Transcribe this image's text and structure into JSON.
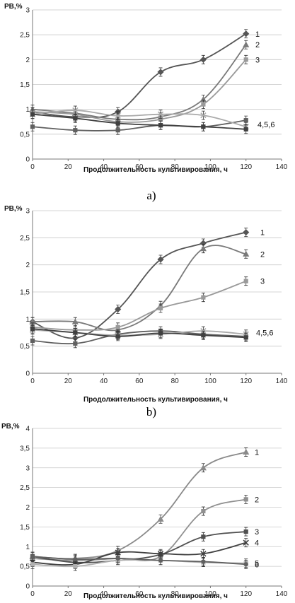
{
  "chart_data": [
    {
      "type": "line",
      "panel_label": "a)",
      "ylabel": "РВ,%",
      "xlabel": "Продолжительность культивирования, ч",
      "xlim": [
        0,
        140
      ],
      "ylim": [
        0,
        3
      ],
      "xticks": [
        0,
        20,
        40,
        60,
        80,
        100,
        120,
        140
      ],
      "yticks": [
        0,
        0.5,
        1,
        1.5,
        2,
        2.5,
        3
      ],
      "ytick_labels": [
        "0",
        "0,5",
        "1",
        "1,5",
        "2",
        "2,5",
        "3"
      ],
      "x": [
        0,
        24,
        48,
        72,
        96,
        120
      ],
      "series": [
        {
          "name": "1",
          "color": "#555555",
          "marker": "diamond",
          "values": [
            0.95,
            0.85,
            0.95,
            1.75,
            2.0,
            2.52
          ]
        },
        {
          "name": "2",
          "color": "#7a7a7a",
          "marker": "triangle",
          "values": [
            1.0,
            0.92,
            0.8,
            0.85,
            1.2,
            2.3
          ]
        },
        {
          "name": "3",
          "color": "#9a9a9a",
          "marker": "square",
          "values": [
            0.95,
            0.9,
            0.75,
            0.8,
            1.1,
            2.0
          ]
        },
        {
          "name": "",
          "color": "#606060",
          "marker": "square",
          "values": [
            0.65,
            0.58,
            0.58,
            0.68,
            0.65,
            0.78
          ]
        },
        {
          "name": "",
          "color": "#aaaaaa",
          "marker": "cross",
          "values": [
            0.9,
            0.98,
            0.87,
            0.9,
            0.88,
            0.65
          ]
        },
        {
          "name": "",
          "color": "#404040",
          "marker": "square",
          "values": [
            0.9,
            0.82,
            0.72,
            0.68,
            0.65,
            0.6
          ]
        }
      ],
      "group_labels": [
        {
          "text": "4,5,6",
          "x": 120,
          "y": 0.7
        }
      ]
    },
    {
      "type": "line",
      "panel_label": "b)",
      "ylabel": "РВ,%",
      "xlabel": "Продолжительность культивирования, ч",
      "xlim": [
        0,
        140
      ],
      "ylim": [
        0,
        3
      ],
      "xticks": [
        0,
        20,
        40,
        60,
        80,
        100,
        120,
        140
      ],
      "yticks": [
        0,
        0.5,
        1,
        1.5,
        2,
        2.5,
        3
      ],
      "ytick_labels": [
        "0",
        "0,5",
        "1",
        "1,5",
        "2",
        "2,5",
        "3"
      ],
      "x": [
        0,
        24,
        48,
        72,
        96,
        120
      ],
      "series": [
        {
          "name": "1",
          "color": "#555555",
          "marker": "diamond",
          "values": [
            0.95,
            0.65,
            1.18,
            2.1,
            2.4,
            2.6
          ]
        },
        {
          "name": "2",
          "color": "#7a7a7a",
          "marker": "triangle",
          "values": [
            0.95,
            0.95,
            0.8,
            1.25,
            2.3,
            2.2
          ]
        },
        {
          "name": "3",
          "color": "#9a9a9a",
          "marker": "square",
          "values": [
            0.85,
            0.8,
            0.85,
            1.2,
            1.4,
            1.7
          ]
        },
        {
          "name": "",
          "color": "#606060",
          "marker": "square",
          "values": [
            0.6,
            0.55,
            0.72,
            0.78,
            0.72,
            0.68
          ]
        },
        {
          "name": "",
          "color": "#aaaaaa",
          "marker": "cross",
          "values": [
            0.8,
            0.75,
            0.7,
            0.72,
            0.78,
            0.72
          ]
        },
        {
          "name": "",
          "color": "#404040",
          "marker": "square",
          "values": [
            0.82,
            0.75,
            0.68,
            0.74,
            0.7,
            0.66
          ]
        }
      ],
      "group_labels": [
        {
          "text": "4,5,6",
          "x": 120,
          "y": 0.75
        }
      ]
    },
    {
      "type": "line",
      "ylabel": "РВ,%",
      "xlabel": "Продолжительность культивирования, ч",
      "xlim": [
        0,
        140
      ],
      "ylim": [
        0,
        4
      ],
      "xticks": [
        0,
        20,
        40,
        60,
        80,
        100,
        120,
        140
      ],
      "yticks": [
        0,
        0.5,
        1,
        1.5,
        2,
        2.5,
        3,
        3.5,
        4
      ],
      "ytick_labels": [
        "0",
        "0,5",
        "1",
        "1,5",
        "2",
        "2,5",
        "3",
        "3,5",
        "4"
      ],
      "x": [
        0,
        24,
        48,
        72,
        96,
        120
      ],
      "series": [
        {
          "name": "1",
          "color": "#8a8a8a",
          "marker": "triangle",
          "values": [
            0.75,
            0.7,
            0.9,
            1.7,
            3.0,
            3.4
          ]
        },
        {
          "name": "2",
          "color": "#909090",
          "marker": "square",
          "values": [
            0.7,
            0.65,
            0.7,
            0.75,
            1.9,
            2.2
          ]
        },
        {
          "name": "3",
          "color": "#505050",
          "marker": "square",
          "values": [
            0.75,
            0.6,
            0.65,
            0.8,
            1.25,
            1.38
          ]
        },
        {
          "name": "4",
          "color": "#404040",
          "marker": "cross",
          "values": [
            0.6,
            0.55,
            0.85,
            0.82,
            0.82,
            1.1
          ]
        },
        {
          "name": "5",
          "color": "#b0b0b0",
          "marker": "square",
          "values": [
            0.55,
            0.5,
            0.65,
            0.65,
            0.6,
            0.58
          ]
        },
        {
          "name": "6",
          "color": "#606060",
          "marker": "circle",
          "values": [
            0.75,
            0.68,
            0.7,
            0.65,
            0.62,
            0.55
          ]
        }
      ]
    }
  ]
}
